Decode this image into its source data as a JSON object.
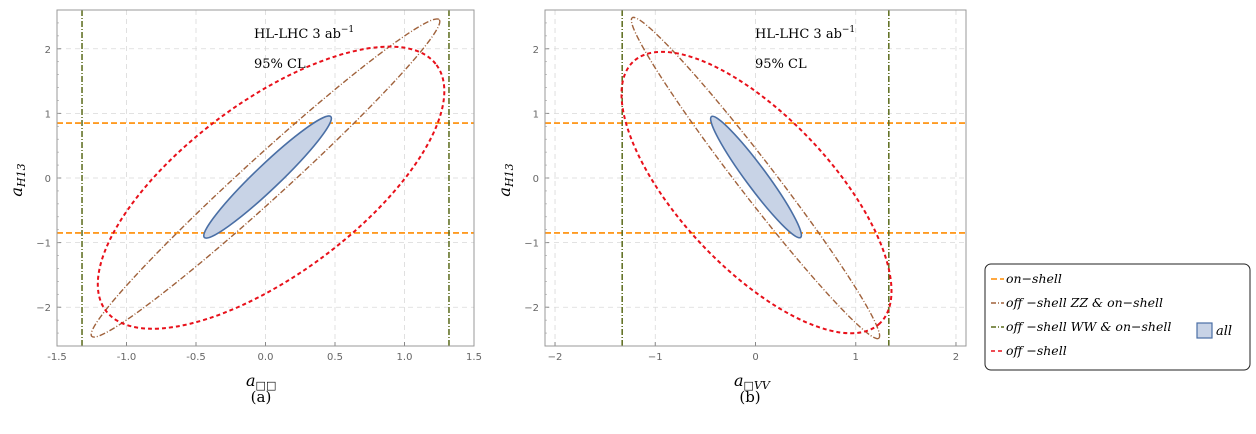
{
  "chart_data": [
    {
      "type": "contour",
      "caption": "(a)",
      "annotation_line1": "HL-LHC 3 ab",
      "annotation_sup": "−1",
      "annotation_line2": "95% CL",
      "xlabel_main": "a",
      "xlabel_sub": "□□",
      "ylabel_main": "a",
      "ylabel_sub": "H13",
      "xlim": [
        -1.5,
        1.5
      ],
      "ylim": [
        -2.6,
        2.6
      ],
      "xticks": [
        "-1.5",
        "-1.0",
        "-0.5",
        "0.0",
        "0.5",
        "1.0",
        "1.5"
      ],
      "yticks": [
        "−2",
        "−1",
        "0",
        "1",
        "2"
      ],
      "grid": true,
      "series": [
        {
          "name": "on-shell",
          "shape": "hlines",
          "y": [
            0.85,
            -0.85
          ],
          "color": "#ff8c00",
          "dash": "6,3"
        },
        {
          "name": "off-shell WW & on-shell",
          "shape": "vlines",
          "x": [
            -1.32,
            1.32
          ],
          "color": "#5a6b1a",
          "dash": "6,2,1,2"
        },
        {
          "name": "off-shell ZZ & on-shell",
          "shape": "ellipse",
          "center": [
            0.0,
            0.0
          ],
          "corners": [
            [
              -1.25,
              -2.45
            ],
            [
              1.25,
              2.45
            ]
          ],
          "width": 0.09,
          "color": "#a0623c",
          "dash": "6,2,1,2"
        },
        {
          "name": "off-shell",
          "shape": "ellipse",
          "center": [
            0.04,
            -0.22
          ],
          "corners": [
            [
              -1.15,
              -2.05
            ],
            [
              1.23,
              1.75
            ]
          ],
          "width": 0.42,
          "color": "#e8101a",
          "dash": "4,3"
        },
        {
          "name": "all",
          "shape": "ellipse-filled",
          "center": [
            0.02,
            0.02
          ],
          "corners": [
            [
              -0.44,
              -0.92
            ],
            [
              0.47,
              0.95
            ]
          ],
          "width": 0.14,
          "color": "#4a6fa5",
          "fill": "#c8d3e6"
        }
      ]
    },
    {
      "type": "contour",
      "caption": "(b)",
      "annotation_line1": "HL-LHC 3 ab",
      "annotation_sup": "−1",
      "annotation_line2": "95% CL",
      "xlabel_main": "a",
      "xlabel_sub": "□VV",
      "ylabel_main": "a",
      "ylabel_sub": "H13",
      "xlim": [
        -2.1,
        2.1
      ],
      "ylim": [
        -2.6,
        2.6
      ],
      "xticks": [
        "−2",
        "−1",
        "0",
        "1",
        "2"
      ],
      "yticks": [
        "−2",
        "−1",
        "0",
        "1",
        "2"
      ],
      "grid": true,
      "series": [
        {
          "name": "on-shell",
          "shape": "hlines",
          "y": [
            0.85,
            -0.85
          ],
          "color": "#ff8c00",
          "dash": "6,3"
        },
        {
          "name": "off-shell WW & on-shell",
          "shape": "vlines",
          "x": [
            -1.33,
            1.33
          ],
          "color": "#5a6b1a",
          "dash": "6,2,1,2"
        },
        {
          "name": "off-shell ZZ & on-shell",
          "shape": "ellipse",
          "center": [
            0.0,
            0.0
          ],
          "corners": [
            [
              -1.23,
              2.48
            ],
            [
              1.23,
              -2.48
            ]
          ],
          "width": 0.09,
          "color": "#a0623c",
          "dash": "6,2,1,2"
        },
        {
          "name": "off-shell",
          "shape": "ellipse",
          "center": [
            0.02,
            -0.2
          ],
          "corners": [
            [
              -1.22,
              1.8
            ],
            [
              1.24,
              -2.25
            ]
          ],
          "width": 0.42,
          "color": "#e8101a",
          "dash": "4,3"
        },
        {
          "name": "all",
          "shape": "ellipse-filled",
          "center": [
            0.0,
            0.02
          ],
          "corners": [
            [
              -0.44,
              0.95
            ],
            [
              0.45,
              -0.92
            ]
          ],
          "width": 0.14,
          "color": "#4a6fa5",
          "fill": "#c8d3e6"
        }
      ]
    }
  ],
  "legend": {
    "items": [
      {
        "label": "on−shell",
        "color": "#ff8c00",
        "dash": "6,3"
      },
      {
        "label": "off −shell ZZ & on−shell",
        "color": "#a0623c",
        "dash": "5,2,1,2"
      },
      {
        "label": "off −shell WW & on−shell",
        "color": "#5a6b1a",
        "dash": "5,2,1,2"
      },
      {
        "label": "off −shell",
        "color": "#e8101a",
        "dash": "4,3"
      }
    ],
    "all_label": "all",
    "all_fill": "#c8d3e6",
    "all_stroke": "#4a6fa5"
  }
}
